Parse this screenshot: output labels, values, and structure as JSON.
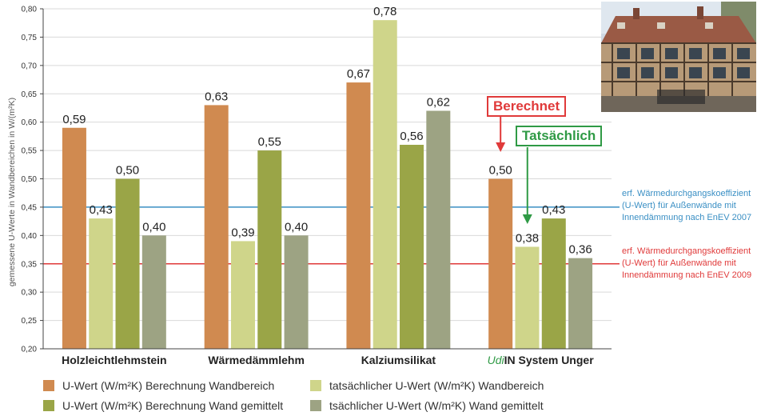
{
  "chart_data": {
    "type": "bar",
    "ylabel": "gemessene U-Werte in Wandbereichen in W/(m²K)",
    "ylim": [
      0.2,
      0.8
    ],
    "yticks": [
      "0,20",
      "0,25",
      "0,30",
      "0,35",
      "0,40",
      "0,45",
      "0,50",
      "0,55",
      "0,60",
      "0,65",
      "0,70",
      "0,75",
      "0,80"
    ],
    "grid": true,
    "categories": [
      {
        "prefix": "",
        "label": "Holzleichtlehmstein"
      },
      {
        "prefix": "",
        "label": "Wärmedämmlehm"
      },
      {
        "prefix": "",
        "label": "Kalziumsilikat"
      },
      {
        "prefix": "Udi",
        "label": "IN System Unger"
      }
    ],
    "series": [
      {
        "name": "U-Wert (W/m²K) Berechnung Wandbereich",
        "color": "#d08a50",
        "values": [
          0.59,
          0.63,
          0.67,
          0.5
        ],
        "labels": [
          "0,59",
          "0,63",
          "0,67",
          "0,50"
        ]
      },
      {
        "name": "tatsächlicher U-Wert (W/m²K) Wandbereich",
        "color": "#cfd58a",
        "values": [
          0.43,
          0.39,
          0.78,
          0.38
        ],
        "labels": [
          "0,43",
          "0,39",
          "0,78",
          "0,38"
        ]
      },
      {
        "name": "U-Wert (W/m²K) Berechnung Wand gemittelt",
        "color": "#9aa547",
        "values": [
          0.5,
          0.55,
          0.56,
          0.43
        ],
        "labels": [
          "0,50",
          "0,55",
          "0,56",
          "0,43"
        ]
      },
      {
        "name": "tsächlicher U-Wert (W/m²K) Wand gemittelt",
        "color": "#9da383",
        "values": [
          0.4,
          0.4,
          0.62,
          0.36
        ],
        "labels": [
          "0,40",
          "0,40",
          "0,62",
          "0,36"
        ]
      }
    ],
    "reference_lines": [
      {
        "value": 0.45,
        "color": "#3a8fc4",
        "text": [
          "erf. Wärmedurchgangskoeffizient",
          "(U-Wert) für Außenwände mit",
          "Innendämmung nach EnEV 2007"
        ]
      },
      {
        "value": 0.35,
        "color": "#e03a3a",
        "text": [
          "erf. Wärmedurchgangskoeffizient",
          "(U-Wert) für Außenwände mit",
          "Innendämmung nach EnEV 2009"
        ]
      }
    ],
    "annotations": [
      {
        "text": "Berechnet",
        "color": "#e03a3a"
      },
      {
        "text": "Tatsächlich",
        "color": "#2f9a45"
      }
    ],
    "legend_position": "bottom"
  },
  "colors": {
    "udi_prefix": "#2f9a45",
    "axis": "#444444",
    "grid": "#d9d9d9"
  },
  "photo": {
    "icon": "half-timbered-house-photo"
  }
}
